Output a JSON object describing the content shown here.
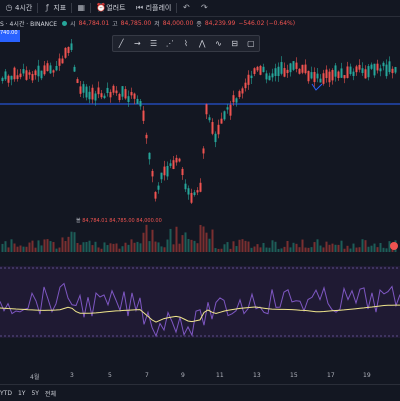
{
  "toolbar": {
    "items": [
      {
        "label": "4시간",
        "icon": "clock-icon"
      },
      {
        "label": "지표",
        "icon": "indicator-icon"
      },
      {
        "label": "",
        "icon": "grid-icon"
      },
      {
        "label": "얼러트",
        "icon": "alarm-icon"
      },
      {
        "label": "리플레이",
        "icon": "replay-icon"
      }
    ],
    "undo_icon": "undo-icon",
    "redo_icon": "redo-icon"
  },
  "symbol": {
    "title": "S · 4시간 · BINANCE",
    "o_label": "시",
    "o_value": "84,784.01",
    "h_label": "고",
    "h_value": "84,785.00",
    "l_label": "저",
    "l_value": "84,000.00",
    "c_label": "종",
    "c_value": "84,239.99",
    "change": "−546.02 (−0.64%)"
  },
  "left_tag": "740.00",
  "volume": {
    "label": "볼",
    "value1": "84,784.01",
    "value2": "84,785.00",
    "value3": "84,000.00"
  },
  "date_axis": [
    "4월",
    "3",
    "5",
    "7",
    "9",
    "11",
    "13",
    "15",
    "17",
    "19"
  ],
  "bottom_bar": [
    "YTD",
    "1Y",
    "5Y",
    "전체"
  ],
  "colors": {
    "bull": "#26a69a",
    "bear": "#ef5350",
    "hline": "#2962ff",
    "ma": "#f0e68c",
    "rsi": "#7e57c2"
  }
}
